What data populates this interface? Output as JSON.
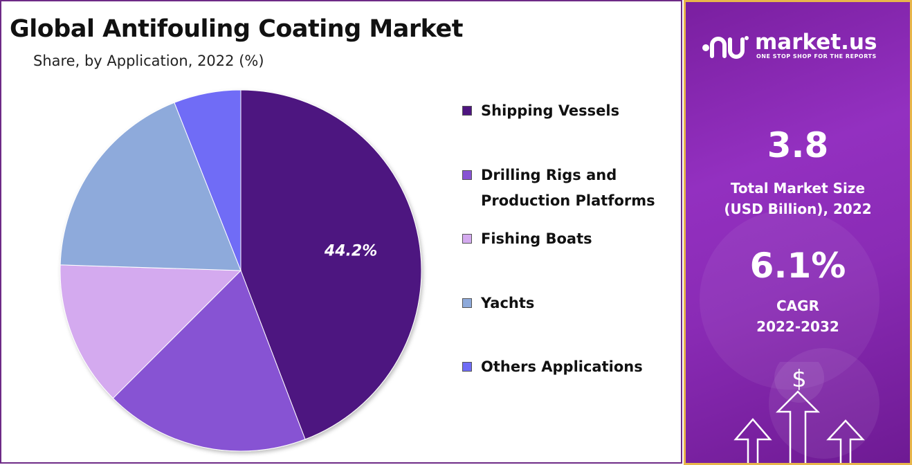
{
  "title": "Global Antifouling Coating Market",
  "subtitle": "Share, by Application, 2022 (%)",
  "chart_data": {
    "type": "pie",
    "title": "Global Antifouling Coating Market",
    "subtitle": "Share, by Application, 2022 (%)",
    "categories": [
      "Shipping Vessels",
      "Drilling Rigs and Production Platforms",
      "Fishing Boats",
      "Yachts",
      "Others Applications"
    ],
    "values": [
      44.2,
      18.3,
      13.0,
      18.5,
      6.0
    ],
    "colors": [
      "#4e1580",
      "#8753d3",
      "#d4aaef",
      "#8eaadb",
      "#6f6cf6"
    ],
    "data_labels": [
      "44.2%",
      "",
      "",
      "",
      ""
    ],
    "start_angle_deg": 0,
    "direction": "clockwise",
    "legend_placement": "right"
  },
  "legend": {
    "items": [
      {
        "lines": [
          "Shipping Vessels"
        ],
        "color": "#4e1580"
      },
      {
        "lines": [
          "Drilling Rigs and",
          "Production Platforms"
        ],
        "color": "#8753d3"
      },
      {
        "lines": [
          "Fishing Boats"
        ],
        "color": "#d4aaef"
      },
      {
        "lines": [
          "Yachts"
        ],
        "color": "#8eaadb"
      },
      {
        "lines": [
          "Others Applications"
        ],
        "color": "#6f6cf6"
      }
    ]
  },
  "side_panel": {
    "logo_text": "market.us",
    "logo_tagline": "ONE STOP SHOP FOR THE REPORTS",
    "market_size_value": "3.8",
    "market_size_label_1": "Total Market Size",
    "market_size_label_2": "(USD Billion), 2022",
    "cagr_value": "6.1%",
    "cagr_label_1": "CAGR",
    "cagr_label_2": "2022-2032",
    "dollar_symbol": "$",
    "accent_color": "#e8b64a"
  }
}
